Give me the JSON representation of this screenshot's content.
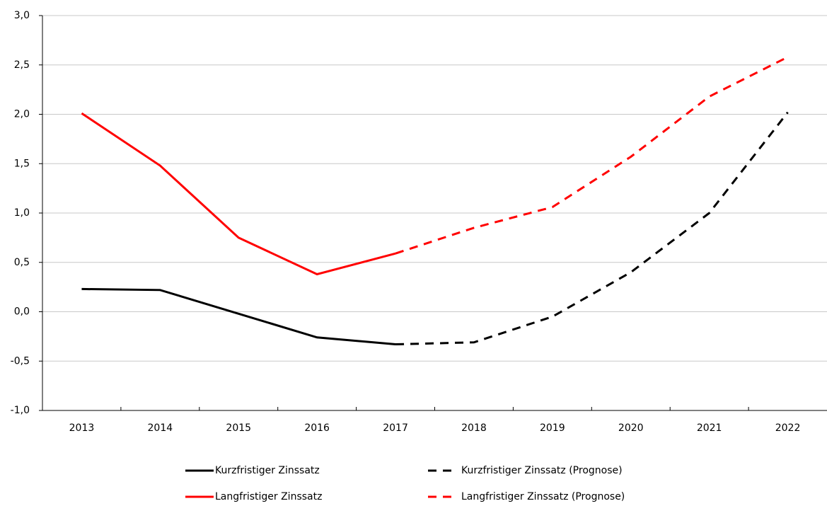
{
  "chart_data": {
    "type": "line",
    "categories": [
      "2013",
      "2014",
      "2015",
      "2016",
      "2017",
      "2018",
      "2019",
      "2020",
      "2021",
      "2022"
    ],
    "series": [
      {
        "name": "Kurzfristiger Zinssatz",
        "color": "#000000",
        "dash": false,
        "values": [
          0.23,
          0.22,
          -0.02,
          -0.26,
          -0.33,
          null,
          null,
          null,
          null,
          null
        ]
      },
      {
        "name": "Kurzfristiger Zinssatz (Prognose)",
        "color": "#000000",
        "dash": true,
        "values": [
          null,
          null,
          null,
          null,
          -0.33,
          -0.31,
          -0.05,
          0.4,
          1.0,
          2.02
        ]
      },
      {
        "name": "Langfristiger Zinssatz",
        "color": "#ff0000",
        "dash": false,
        "values": [
          2.01,
          1.48,
          0.75,
          0.38,
          0.59,
          null,
          null,
          null,
          null,
          null
        ]
      },
      {
        "name": "Langfristiger Zinssatz (Prognose)",
        "color": "#ff0000",
        "dash": true,
        "values": [
          null,
          null,
          null,
          null,
          0.59,
          0.85,
          1.06,
          1.57,
          2.18,
          2.58
        ]
      }
    ],
    "ylim": [
      -1.0,
      3.0
    ],
    "yticks": [
      {
        "value": -1.0,
        "label": "-1,0"
      },
      {
        "value": -0.5,
        "label": "-0,5"
      },
      {
        "value": 0,
        "label": "0,0"
      },
      {
        "value": 0.5,
        "label": "0,5"
      },
      {
        "value": 1.0,
        "label": "1,0"
      },
      {
        "value": 1.5,
        "label": "1,5"
      },
      {
        "value": 2.0,
        "label": "2,0"
      },
      {
        "value": 2.5,
        "label": "2,5"
      },
      {
        "value": 3.0,
        "label": "3,0"
      }
    ],
    "grid": true,
    "legend": "bottom"
  }
}
